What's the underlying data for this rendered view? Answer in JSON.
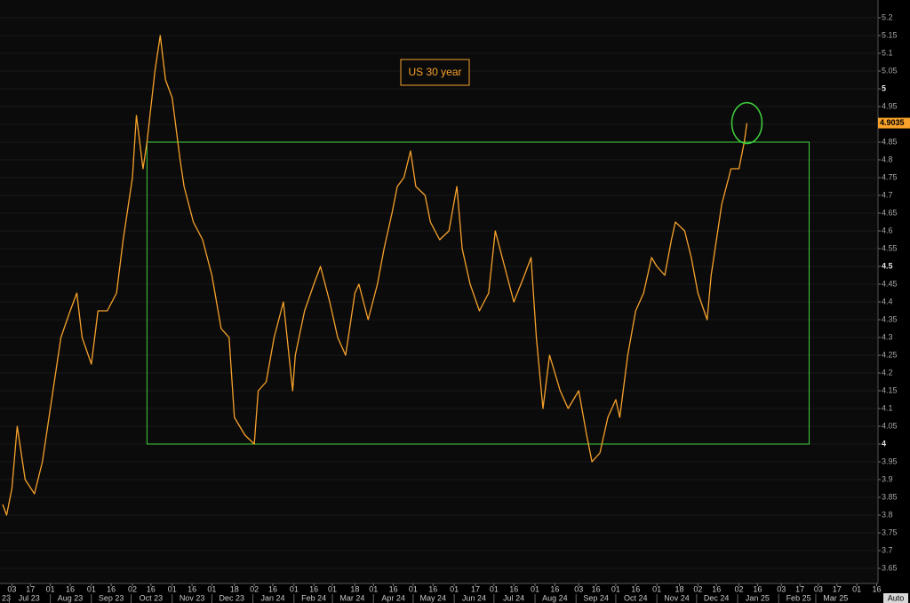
{
  "chart_data": {
    "type": "line",
    "title": "US 30 year",
    "xlim": [
      "2023-06-24",
      "2025-04-17"
    ],
    "ylim": [
      3.61,
      5.25
    ],
    "yticks": [
      3.65,
      3.7,
      3.75,
      3.8,
      3.85,
      3.9,
      3.95,
      4,
      4.05,
      4.1,
      4.15,
      4.2,
      4.25,
      4.3,
      4.35,
      4.4,
      4.45,
      4.5,
      4.55,
      4.6,
      4.65,
      4.7,
      4.75,
      4.8,
      4.85,
      4.9,
      4.95,
      5,
      5.05,
      5.1,
      5.15,
      5.2
    ],
    "xticks": [
      {
        "value": "2023-07-03",
        "label": "03"
      },
      {
        "value": "2023-07-17",
        "label": "17"
      },
      {
        "value": "2023-08-01",
        "label": "01"
      },
      {
        "value": "2023-08-16",
        "label": "16"
      },
      {
        "value": "2023-09-01",
        "label": "01"
      },
      {
        "value": "2023-09-16",
        "label": "16"
      },
      {
        "value": "2023-10-02",
        "label": "02"
      },
      {
        "value": "2023-10-16",
        "label": "16"
      },
      {
        "value": "2023-11-01",
        "label": "01"
      },
      {
        "value": "2023-11-16",
        "label": "16"
      },
      {
        "value": "2023-12-01",
        "label": "01"
      },
      {
        "value": "2023-12-18",
        "label": "18"
      },
      {
        "value": "2024-01-02",
        "label": "02"
      },
      {
        "value": "2024-01-16",
        "label": "16"
      },
      {
        "value": "2024-02-01",
        "label": "01"
      },
      {
        "value": "2024-02-16",
        "label": "16"
      },
      {
        "value": "2024-03-01",
        "label": "01"
      },
      {
        "value": "2024-03-18",
        "label": "18"
      },
      {
        "value": "2024-04-01",
        "label": "01"
      },
      {
        "value": "2024-04-16",
        "label": "16"
      },
      {
        "value": "2024-05-01",
        "label": "01"
      },
      {
        "value": "2024-05-16",
        "label": "16"
      },
      {
        "value": "2024-06-01",
        "label": "01"
      },
      {
        "value": "2024-06-17",
        "label": "17"
      },
      {
        "value": "2024-07-01",
        "label": "01"
      },
      {
        "value": "2024-07-16",
        "label": "16"
      },
      {
        "value": "2024-08-01",
        "label": "01"
      },
      {
        "value": "2024-08-16",
        "label": "16"
      },
      {
        "value": "2024-09-03",
        "label": "03"
      },
      {
        "value": "2024-09-16",
        "label": "16"
      },
      {
        "value": "2024-10-01",
        "label": "01"
      },
      {
        "value": "2024-10-16",
        "label": "16"
      },
      {
        "value": "2024-11-01",
        "label": "01"
      },
      {
        "value": "2024-11-18",
        "label": "18"
      },
      {
        "value": "2024-12-02",
        "label": "02"
      },
      {
        "value": "2024-12-16",
        "label": "16"
      },
      {
        "value": "2025-01-02",
        "label": "02"
      },
      {
        "value": "2025-01-16",
        "label": "16"
      },
      {
        "value": "2025-02-03",
        "label": "03"
      },
      {
        "value": "2025-02-17",
        "label": "17"
      },
      {
        "value": "2025-03-03",
        "label": "03"
      },
      {
        "value": "2025-03-17",
        "label": "17"
      },
      {
        "value": "2025-04-01",
        "label": "01"
      },
      {
        "value": "2025-04-16",
        "label": "16"
      }
    ],
    "xmonths": [
      {
        "value": "2023-06",
        "label": "23"
      },
      {
        "value": "2023-07",
        "label": "Jul 23"
      },
      {
        "value": "2023-08",
        "label": "Aug 23"
      },
      {
        "value": "2023-09",
        "label": "Sep 23"
      },
      {
        "value": "2023-10",
        "label": "Oct 23"
      },
      {
        "value": "2023-11",
        "label": "Nov 23"
      },
      {
        "value": "2023-12",
        "label": "Dec 23"
      },
      {
        "value": "2024-01",
        "label": "Jan 24"
      },
      {
        "value": "2024-02",
        "label": "Feb 24"
      },
      {
        "value": "2024-03",
        "label": "Mar 24"
      },
      {
        "value": "2024-04",
        "label": "Apr 24"
      },
      {
        "value": "2024-05",
        "label": "May 24"
      },
      {
        "value": "2024-06",
        "label": "Jun 24"
      },
      {
        "value": "2024-07",
        "label": "Jul 24"
      },
      {
        "value": "2024-08",
        "label": "Aug 24"
      },
      {
        "value": "2024-09",
        "label": "Sep 24"
      },
      {
        "value": "2024-10",
        "label": "Oct 24"
      },
      {
        "value": "2024-11",
        "label": "Nov 24"
      },
      {
        "value": "2024-12",
        "label": "Dec 24"
      },
      {
        "value": "2025-01",
        "label": "Jan 25"
      },
      {
        "value": "2025-02",
        "label": "Feb 25"
      },
      {
        "value": "2025-03",
        "label": "Mar 25"
      }
    ],
    "grid": true,
    "series": [
      {
        "name": "US 30 year",
        "color": "#f7a12a",
        "x": [
          "2023-06-26",
          "2023-06-29",
          "2023-07-03",
          "2023-07-07",
          "2023-07-13",
          "2023-07-20",
          "2023-07-26",
          "2023-08-03",
          "2023-08-09",
          "2023-08-16",
          "2023-08-21",
          "2023-08-25",
          "2023-09-01",
          "2023-09-06",
          "2023-09-13",
          "2023-09-20",
          "2023-09-25",
          "2023-10-02",
          "2023-10-05",
          "2023-10-10",
          "2023-10-13",
          "2023-10-19",
          "2023-10-23",
          "2023-10-27",
          "2023-11-01",
          "2023-11-07",
          "2023-11-10",
          "2023-11-17",
          "2023-11-24",
          "2023-12-01",
          "2023-12-08",
          "2023-12-14",
          "2023-12-18",
          "2023-12-26",
          "2024-01-02",
          "2024-01-05",
          "2024-01-11",
          "2024-01-17",
          "2024-01-24",
          "2024-01-31",
          "2024-02-02",
          "2024-02-09",
          "2024-02-16",
          "2024-02-21",
          "2024-02-28",
          "2024-03-05",
          "2024-03-11",
          "2024-03-18",
          "2024-03-21",
          "2024-03-28",
          "2024-04-04",
          "2024-04-09",
          "2024-04-15",
          "2024-04-19",
          "2024-04-24",
          "2024-04-29",
          "2024-05-03",
          "2024-05-10",
          "2024-05-14",
          "2024-05-21",
          "2024-05-28",
          "2024-06-03",
          "2024-06-07",
          "2024-06-13",
          "2024-06-20",
          "2024-06-27",
          "2024-07-02",
          "2024-07-09",
          "2024-07-16",
          "2024-07-24",
          "2024-07-29",
          "2024-08-02",
          "2024-08-07",
          "2024-08-12",
          "2024-08-20",
          "2024-08-26",
          "2024-09-03",
          "2024-09-09",
          "2024-09-13",
          "2024-09-19",
          "2024-09-25",
          "2024-10-01",
          "2024-10-04",
          "2024-10-10",
          "2024-10-16",
          "2024-10-22",
          "2024-10-28",
          "2024-11-01",
          "2024-11-07",
          "2024-11-12",
          "2024-11-15",
          "2024-11-22",
          "2024-11-27",
          "2024-12-02",
          "2024-12-09",
          "2024-12-12",
          "2024-12-17",
          "2024-12-20",
          "2024-12-27",
          "2025-01-02",
          "2025-01-06",
          "2025-01-08"
        ],
        "values": [
          3.83,
          3.8,
          3.875,
          4.05,
          3.9,
          3.86,
          3.95,
          4.15,
          4.3,
          4.375,
          4.425,
          4.3,
          4.225,
          4.375,
          4.375,
          4.425,
          4.575,
          4.75,
          4.925,
          4.775,
          4.85,
          5.05,
          5.15,
          5.025,
          4.975,
          4.8,
          4.725,
          4.625,
          4.575,
          4.475,
          4.325,
          4.3,
          4.075,
          4.025,
          4.0,
          4.15,
          4.175,
          4.3,
          4.4,
          4.15,
          4.25,
          4.375,
          4.45,
          4.5,
          4.4,
          4.3,
          4.25,
          4.425,
          4.45,
          4.35,
          4.45,
          4.55,
          4.65,
          4.725,
          4.75,
          4.825,
          4.725,
          4.7,
          4.625,
          4.575,
          4.6,
          4.725,
          4.55,
          4.45,
          4.375,
          4.425,
          4.6,
          4.5,
          4.4,
          4.475,
          4.525,
          4.3,
          4.1,
          4.25,
          4.15,
          4.1,
          4.15,
          4.025,
          3.95,
          3.975,
          4.075,
          4.125,
          4.075,
          4.25,
          4.375,
          4.425,
          4.525,
          4.5,
          4.475,
          4.575,
          4.625,
          4.6,
          4.525,
          4.425,
          4.35,
          4.475,
          4.6,
          4.675,
          4.775,
          4.775,
          4.85,
          4.9035
        ]
      }
    ],
    "range_box": {
      "x": [
        "2023-10-13",
        "2025-02-24"
      ],
      "y": [
        4,
        4.85
      ],
      "color": "#3ed23e"
    }
  },
  "ui": {
    "auto_button": "Auto"
  }
}
